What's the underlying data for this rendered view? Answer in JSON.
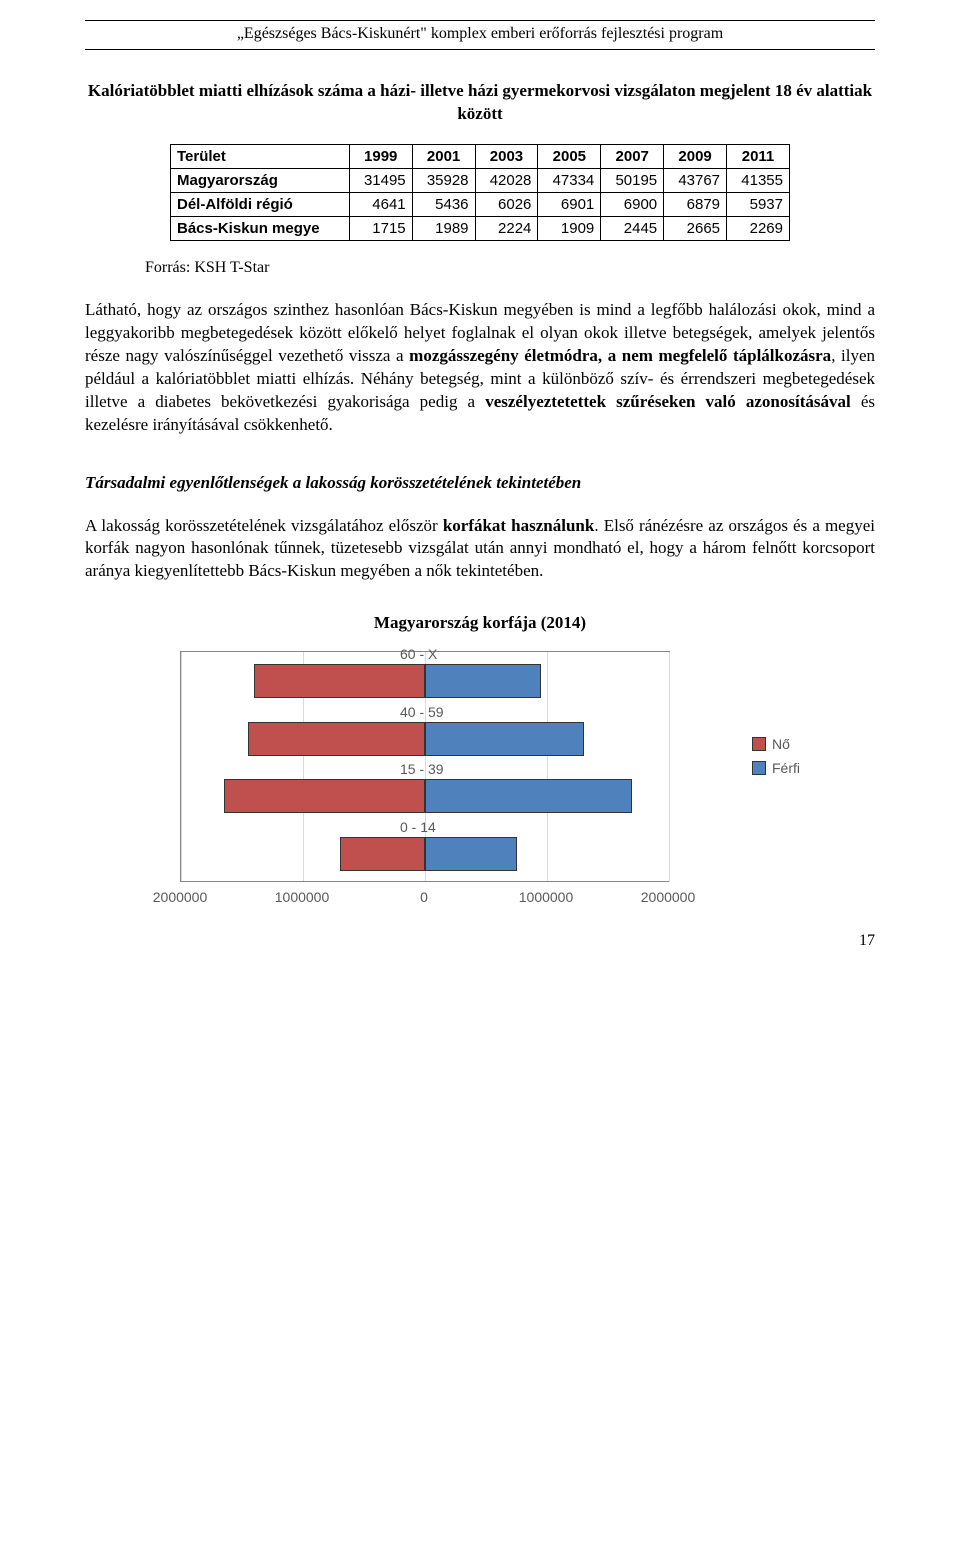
{
  "header": {
    "text": "„Egészséges Bács-Kiskunért\" komplex emberi erőforrás fejlesztési program"
  },
  "title": "Kalóriatöbblet miatti elhízások száma a házi- illetve házi gyermekorvosi vizsgálaton megjelent 18 év alattiak között",
  "table": {
    "header_cells": [
      "Terület",
      "1999",
      "2001",
      "2003",
      "2005",
      "2007",
      "2009",
      "2011"
    ],
    "rows": [
      {
        "label": "Magyarország",
        "cells": [
          "31495",
          "35928",
          "42028",
          "47334",
          "50195",
          "43767",
          "41355"
        ]
      },
      {
        "label": "Dél-Alföldi régió",
        "cells": [
          "4641",
          "5436",
          "6026",
          "6901",
          "6900",
          "6879",
          "5937"
        ]
      },
      {
        "label": "Bács-Kiskun megye",
        "cells": [
          "1715",
          "1989",
          "2224",
          "1909",
          "2445",
          "2665",
          "2269"
        ]
      }
    ]
  },
  "source": "Forrás: KSH T-Star",
  "para1_pre": "Látható, hogy az országos szinthez hasonlóan Bács-Kiskun megyében is mind a legfőbb halálozási okok, mind a leggyakoribb megbetegedések között előkelő helyet foglalnak el olyan okok illetve betegségek, amelyek jelentős része nagy valószínűséggel vezethető vissza a ",
  "para1_b1": "mozgásszegény életmódra, a nem megfelelő táplálkozásra",
  "para1_mid1": ", ilyen például a kalóriatöbblet miatti elhízás. Néhány betegség, mint a különböző szív- és érrendszeri megbetegedések illetve a diabetes bekövetkezési gyakorisága pedig a ",
  "para1_b2": "veszélyeztetettek szűréseken való azonosításával",
  "para1_post": " és kezelésre irányításával csökkenhető.",
  "heading2": "Társadalmi egyenlőtlenségek a lakosság korösszetételének tekintetében",
  "para2_pre": "A lakosság korösszetételének vizsgálatához először ",
  "para2_b1": "korfákat használunk",
  "para2_post": ". Első ránézésre az országos és a megyei korfák nagyon hasonlónak tűnnek, tüzetesebb vizsgálat után annyi mondható el, hogy a három felnőtt korcsoport aránya kiegyenlítettebb Bács-Kiskun megyében a nők tekintetében.",
  "chart": {
    "title": "Magyarország korfája (2014)",
    "type": "population-pyramid",
    "categories": [
      "60 - X",
      "40 - 59",
      "15 - 39",
      "0 - 14"
    ],
    "female_values": [
      1400000,
      1450000,
      1650000,
      700000
    ],
    "male_values": [
      950000,
      1300000,
      1700000,
      750000
    ],
    "female_color": "#c0504d",
    "male_color": "#4f81bd",
    "xlim": [
      -2000000,
      2000000
    ],
    "x_ticks": [
      -2000000,
      -1000000,
      0,
      1000000,
      2000000
    ],
    "x_tick_labels": [
      "2000000",
      "1000000",
      "0",
      "1000000",
      "2000000"
    ],
    "legend": [
      {
        "label": "Nő",
        "color": "#c0504d"
      },
      {
        "label": "Férfi",
        "color": "#4f81bd"
      }
    ],
    "grid_color": "#d9d9d9",
    "label_fontsize": 14,
    "bar_border": "#333333"
  },
  "page_num": "17"
}
